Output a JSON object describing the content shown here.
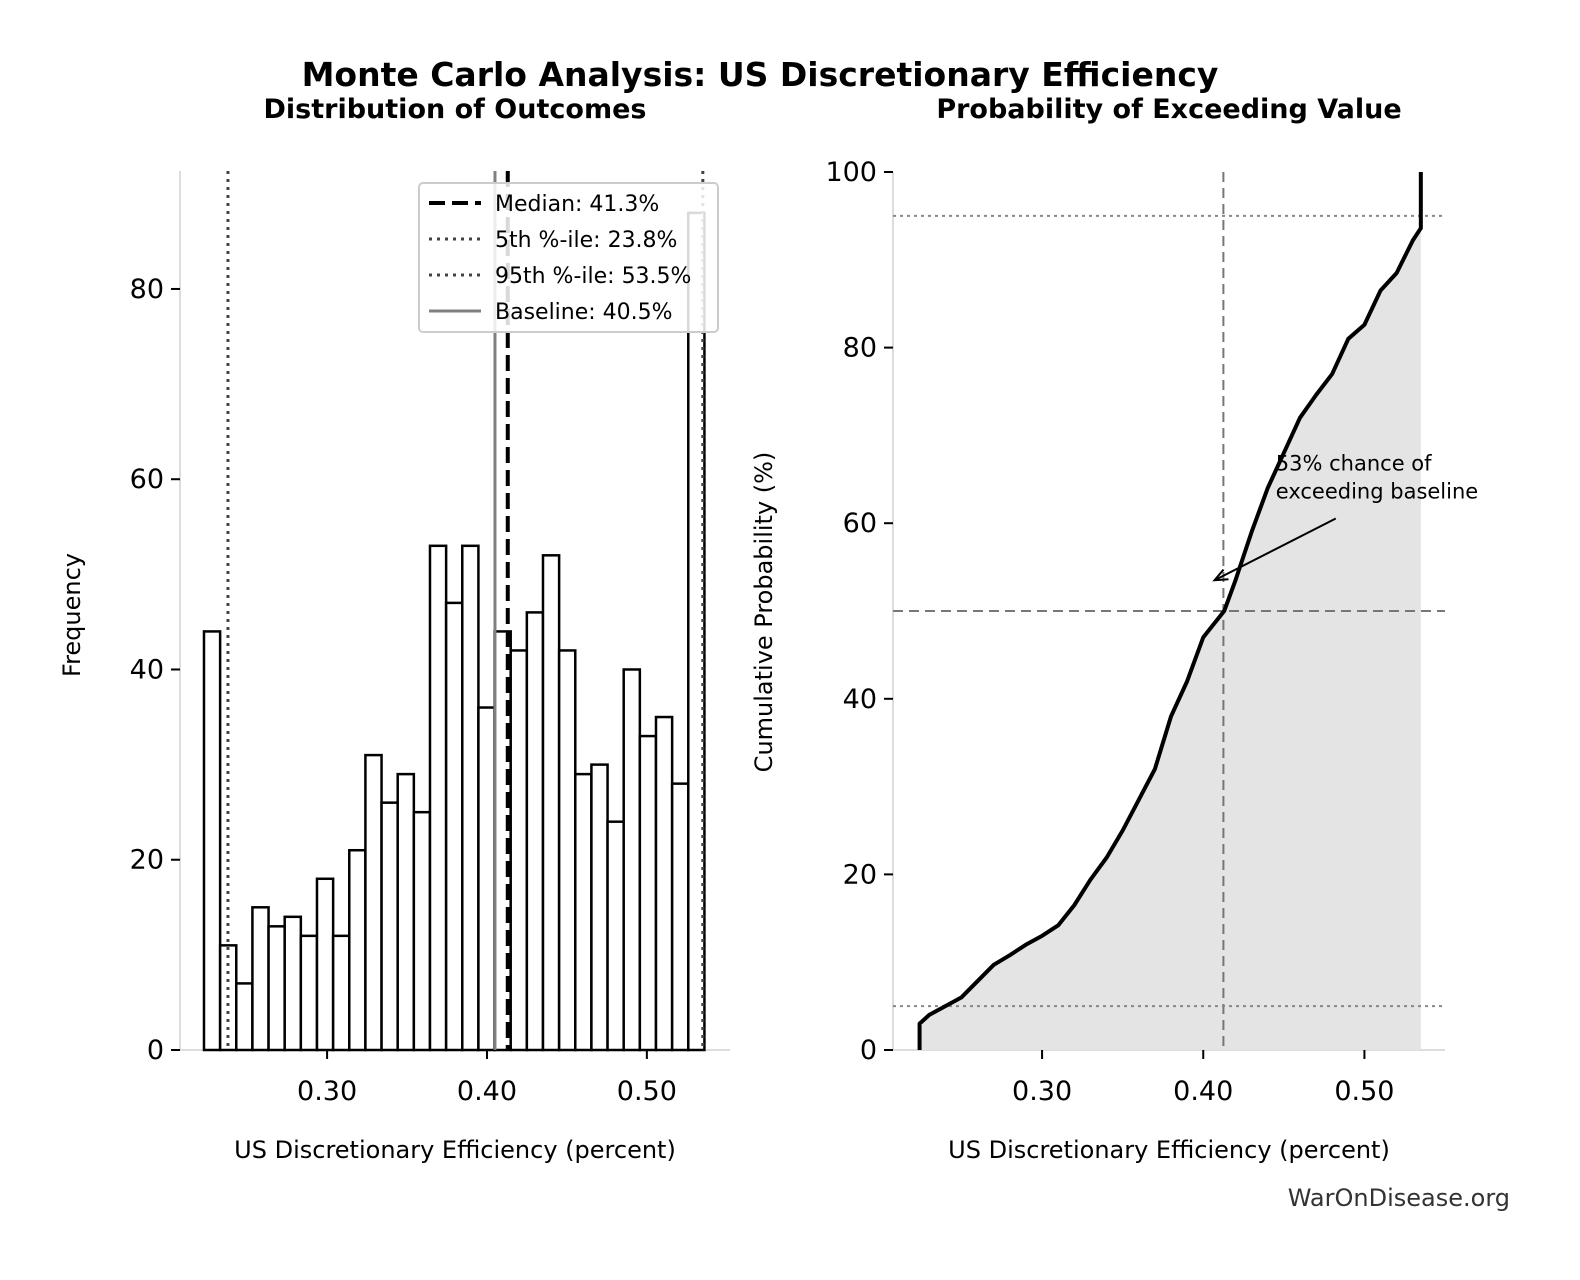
{
  "title": "Monte Carlo Analysis: US Discretionary Efficiency",
  "watermark": "WarOnDisease.org",
  "chart_data": [
    {
      "type": "bar",
      "subtitle": "Distribution of Outcomes",
      "xlabel": "US Discretionary Efficiency (percent)",
      "ylabel": "Frequency",
      "xlim": [
        0.208,
        0.552
      ],
      "ylim": [
        0,
        92.4
      ],
      "xticks": [
        0.3,
        0.4,
        0.5
      ],
      "xtick_labels": [
        "0.30",
        "0.40",
        "0.50"
      ],
      "yticks": [
        0,
        20,
        40,
        60,
        80
      ],
      "ytick_labels": [
        "0",
        "20",
        "40",
        "60",
        "80"
      ],
      "bin_start": 0.223,
      "bin_end": 0.536,
      "values": [
        44,
        11,
        7,
        15,
        13,
        14,
        12,
        18,
        12,
        21,
        31,
        26,
        29,
        25,
        53,
        47,
        53,
        36,
        44,
        42,
        46,
        52,
        42,
        29,
        30,
        24,
        40,
        33,
        35,
        28,
        88
      ],
      "bar_fill": "#ffffff",
      "bar_edge": "#000000",
      "grid": false,
      "legend_position": "top-right",
      "reference_lines": [
        {
          "label": "Median: 41.3%",
          "x": 0.413,
          "style": "dashed",
          "color": "#000000"
        },
        {
          "label": "5th %-ile: 23.8%",
          "x": 0.238,
          "style": "dotted",
          "color": "#444444"
        },
        {
          "label": "95th %-ile: 53.5%",
          "x": 0.535,
          "style": "dotted",
          "color": "#444444"
        },
        {
          "label": "Baseline: 40.5%",
          "x": 0.405,
          "style": "solid",
          "color": "#808080"
        }
      ]
    },
    {
      "type": "area",
      "subtitle": "Probability of Exceeding Value",
      "xlabel": "US Discretionary Efficiency (percent)",
      "ylabel": "Cumulative Probability (%)",
      "xlim": [
        0.2075,
        0.55
      ],
      "ylim": [
        0,
        100
      ],
      "xticks": [
        0.3,
        0.4,
        0.5
      ],
      "xtick_labels": [
        "0.30",
        "0.40",
        "0.50"
      ],
      "yticks": [
        0,
        20,
        40,
        60,
        80,
        100
      ],
      "ytick_labels": [
        "0",
        "20",
        "40",
        "60",
        "80",
        "100"
      ],
      "grid": false,
      "fill_color": "#e4e4e4",
      "line_color": "#000000",
      "x": [
        0.224,
        0.224,
        0.23,
        0.25,
        0.27,
        0.28,
        0.29,
        0.3,
        0.31,
        0.32,
        0.33,
        0.34,
        0.35,
        0.36,
        0.37,
        0.38,
        0.39,
        0.4,
        0.413,
        0.42,
        0.43,
        0.44,
        0.45,
        0.46,
        0.47,
        0.48,
        0.49,
        0.5,
        0.51,
        0.52,
        0.53,
        0.535,
        0.535
      ],
      "y": [
        0,
        3,
        4,
        6,
        9.7,
        10.8,
        12,
        13,
        14.2,
        16.5,
        19.4,
        21.9,
        25,
        28.5,
        32,
        38,
        42,
        47,
        50,
        53.5,
        59,
        64,
        68,
        72,
        74.6,
        77,
        81,
        82.6,
        86.5,
        88.5,
        92.2,
        93.6,
        100
      ],
      "reference_lines": [
        {
          "axis": "x",
          "value": 0.4125,
          "style": "dashed",
          "color": "#777777"
        },
        {
          "axis": "y",
          "value": 50,
          "style": "dashed",
          "color": "#777777"
        },
        {
          "axis": "y",
          "value": 5,
          "style": "dotted",
          "color": "#888888"
        },
        {
          "axis": "y",
          "value": 95,
          "style": "dotted",
          "color": "#888888"
        }
      ],
      "annotation": {
        "lines": [
          "53% chance of",
          "exceeding baseline"
        ],
        "arrow_to": [
          0.407,
          53.5
        ],
        "text_at": [
          0.445,
          66
        ]
      }
    }
  ]
}
